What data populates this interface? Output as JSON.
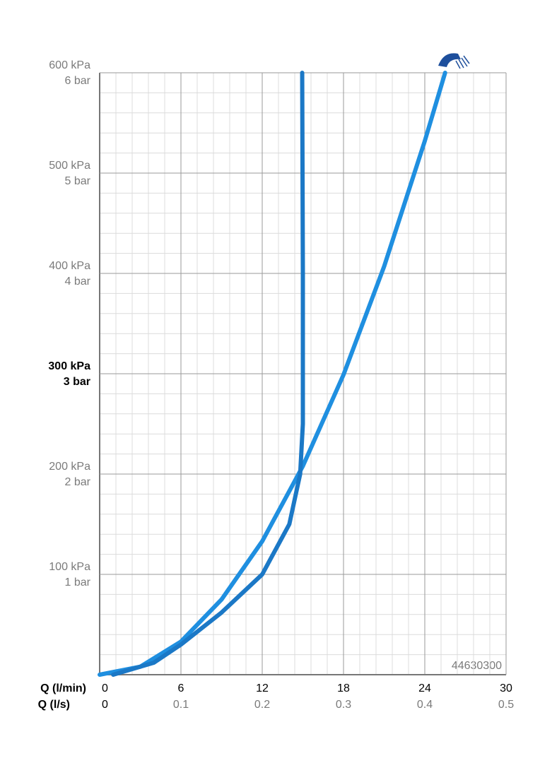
{
  "chart_data": {
    "type": "line",
    "annotation": "44630300",
    "x_label": "Q (l/min)",
    "x2_label": "Q (l/s)",
    "xlim": [
      0,
      30
    ],
    "xticks": [
      0,
      6,
      12,
      18,
      24,
      30
    ],
    "x2lim": [
      0,
      0.5
    ],
    "x2ticks": [
      0,
      0.1,
      0.2,
      0.3,
      0.4,
      0.5
    ],
    "ylim": [
      0,
      600
    ],
    "yticks": [
      {
        "value": 100,
        "label": "100 kPa"
      },
      {
        "value": 200,
        "label": "200 kPa"
      },
      {
        "value": 300,
        "label": "300 kPa"
      },
      {
        "value": 400,
        "label": "400 kPa"
      },
      {
        "value": 500,
        "label": "500 kPa"
      },
      {
        "value": 600,
        "label": "600 kPa"
      }
    ],
    "y2lim": [
      0,
      6
    ],
    "y2ticks": [
      {
        "value": 1,
        "label": "1 bar"
      },
      {
        "value": 2,
        "label": "2 bar"
      },
      {
        "value": 3,
        "label": "3 bar"
      },
      {
        "value": 4,
        "label": "4 bar"
      },
      {
        "value": 5,
        "label": "5 bar"
      },
      {
        "value": 6,
        "label": "6 bar"
      }
    ],
    "grid": true,
    "minor_divisions": 5,
    "series": [
      {
        "color": "#1f8fe0",
        "x": [
          0,
          3,
          6,
          9,
          12,
          15,
          18,
          21,
          24,
          25.5
        ],
        "values": [
          0,
          8,
          33,
          75,
          133,
          208,
          299,
          407,
          532,
          600
        ]
      },
      {
        "color": "#1b78c6",
        "x": [
          1,
          4,
          6,
          9,
          12,
          14,
          14.8,
          15,
          15,
          14.95
        ],
        "values": [
          0,
          12,
          30,
          62,
          100,
          150,
          200,
          250,
          400,
          600
        ]
      }
    ]
  }
}
